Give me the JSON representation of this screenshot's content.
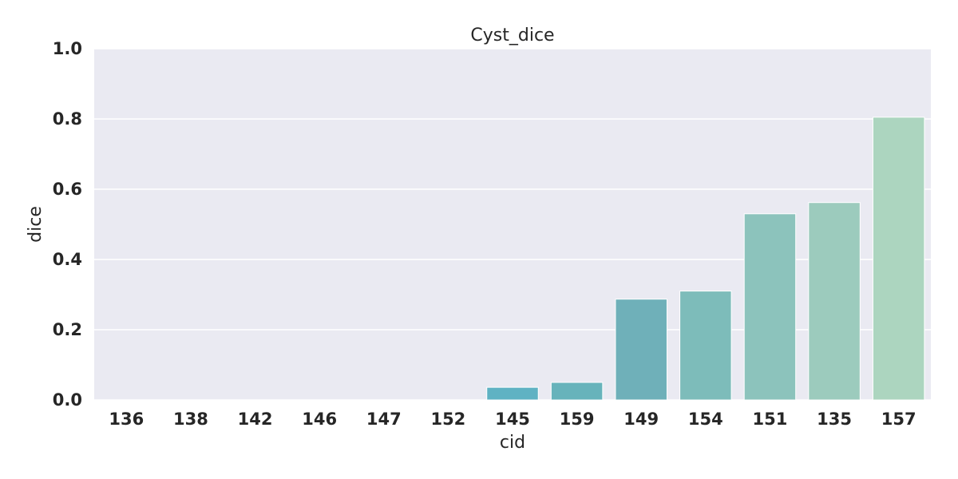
{
  "chart_data": {
    "type": "bar",
    "title": "Cyst_dice",
    "xlabel": "cid",
    "ylabel": "dice",
    "ylim": [
      0,
      1.0
    ],
    "yticks": [
      "0.0",
      "0.2",
      "0.4",
      "0.6",
      "0.8",
      "1.0"
    ],
    "grid": true,
    "categories": [
      "136",
      "138",
      "142",
      "146",
      "147",
      "152",
      "145",
      "159",
      "149",
      "154",
      "151",
      "135",
      "157"
    ],
    "values": [
      0,
      0,
      0,
      0,
      0,
      0,
      0.036,
      0.05,
      0.287,
      0.31,
      0.53,
      0.562,
      0.805
    ],
    "colors": [
      "#2c7bb6",
      "#3585b9",
      "#3d8fbc",
      "#4599bf",
      "#4ea3c1",
      "#57abc2",
      "#5fb2c3",
      "#67b3bb",
      "#6fb0b9",
      "#7dbcba",
      "#8cc3bc",
      "#9ccbbd",
      "#acd5bf"
    ],
    "plot_background": "#eaeaf2",
    "grid_color": "#ffffff"
  }
}
